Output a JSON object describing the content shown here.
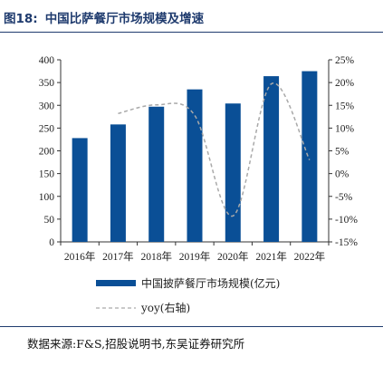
{
  "header": {
    "figure_label": "图18:",
    "title": "中国比萨餐厅市场规模及增速"
  },
  "source": "数据来源:F&S,招股说明书,东吴证券研究所",
  "colors": {
    "bar": "#0a4f96",
    "line": "#a9a9a9",
    "title": "#1f3b6e"
  },
  "chart_data": {
    "type": "bar",
    "title": "中国比萨餐厅市场规模及增速",
    "categories": [
      "2016年",
      "2017年",
      "2018年",
      "2019年",
      "2020年",
      "2021年",
      "2022年"
    ],
    "series": [
      {
        "name": "中国披萨餐厅市场规模(亿元)",
        "type": "bar",
        "axis": "left",
        "values": [
          228,
          258,
          297,
          335,
          304,
          364,
          375
        ]
      },
      {
        "name": "yoy(右轴)",
        "type": "line",
        "axis": "right",
        "style": "dashed",
        "values": [
          null,
          13.2,
          15.1,
          12.8,
          -9.3,
          19.7,
          3.0
        ]
      }
    ],
    "y_left": {
      "min": 0,
      "max": 400,
      "ticks": [
        0,
        50,
        100,
        150,
        200,
        250,
        300,
        350,
        400
      ]
    },
    "y_right": {
      "min": -15,
      "max": 25,
      "ticks": [
        -15,
        -10,
        -5,
        0,
        5,
        10,
        15,
        20,
        25
      ],
      "tick_labels": [
        "-15%",
        "-10%",
        "-5%",
        "0%",
        "5%",
        "10%",
        "15%",
        "20%",
        "25%"
      ]
    },
    "legend_placement": "bottom",
    "grid": false
  }
}
